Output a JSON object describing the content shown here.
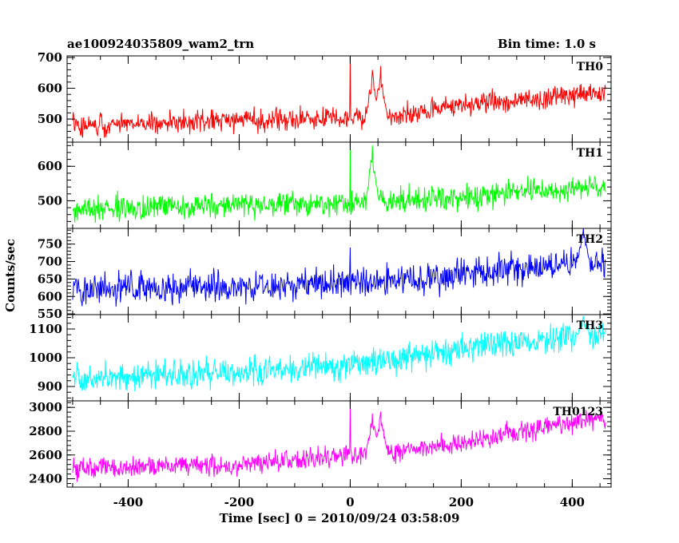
{
  "header": {
    "title": "ae100924035809_wam2_trn",
    "bin_time": "Bin time: 1.0 s"
  },
  "chart_data": {
    "type": "line",
    "xlabel": "Time [sec] 0 = 2010/09/24 03:58:09",
    "ylabel": "Counts/sec",
    "xlim": [
      -510,
      470
    ],
    "x_ticks": [
      "-400",
      "-200",
      "0",
      "200",
      "400"
    ],
    "x_tick_values": [
      -400,
      -200,
      0,
      200,
      400
    ],
    "x_range": [
      -500,
      460
    ],
    "grid": false,
    "panels": [
      {
        "name": "TH0",
        "color": "#ff0000",
        "ylim": [
          425,
          705
        ],
        "y_ticks": [
          "500",
          "600",
          "700"
        ],
        "y_tick_values": [
          500,
          600,
          700
        ],
        "baseline": [
          [
            -500,
            480
          ],
          [
            -200,
            495
          ],
          [
            0,
            505
          ],
          [
            100,
            515
          ],
          [
            200,
            545
          ],
          [
            300,
            560
          ],
          [
            460,
            585
          ]
        ],
        "noise_amplitude": 38,
        "spikes": [
          [
            0,
            700
          ],
          [
            40,
            660
          ],
          [
            55,
            672
          ]
        ]
      },
      {
        "name": "TH1",
        "color": "#00ff00",
        "ylim": [
          420,
          670
        ],
        "y_ticks": [
          "500",
          "600"
        ],
        "y_tick_values": [
          500,
          600
        ],
        "baseline": [
          [
            -500,
            475
          ],
          [
            -200,
            485
          ],
          [
            0,
            495
          ],
          [
            100,
            500
          ],
          [
            200,
            510
          ],
          [
            300,
            525
          ],
          [
            460,
            540
          ]
        ],
        "noise_amplitude": 40,
        "spikes": [
          [
            0,
            665
          ],
          [
            40,
            660
          ]
        ]
      },
      {
        "name": "TH2",
        "color": "#0000ff",
        "ylim": [
          548,
          795
        ],
        "y_ticks": [
          "550",
          "600",
          "650",
          "700",
          "750"
        ],
        "y_tick_values": [
          550,
          600,
          650,
          700,
          750
        ],
        "baseline": [
          [
            -500,
            620
          ],
          [
            -200,
            628
          ],
          [
            0,
            640
          ],
          [
            100,
            650
          ],
          [
            200,
            665
          ],
          [
            300,
            685
          ],
          [
            460,
            700
          ]
        ],
        "noise_amplitude": 48,
        "spikes": [
          [
            0,
            740
          ],
          [
            420,
            795
          ]
        ]
      },
      {
        "name": "TH3",
        "color": "#00ffff",
        "ylim": [
          850,
          1150
        ],
        "y_ticks": [
          "900",
          "1000",
          "1100"
        ],
        "y_tick_values": [
          900,
          1000,
          1100
        ],
        "baseline": [
          [
            -500,
            930
          ],
          [
            -200,
            950
          ],
          [
            0,
            975
          ],
          [
            100,
            1000
          ],
          [
            200,
            1030
          ],
          [
            300,
            1055
          ],
          [
            460,
            1080
          ]
        ],
        "noise_amplitude": 55,
        "spikes": [
          [
            420,
            1145
          ]
        ]
      },
      {
        "name": "TH0123",
        "color": "#ff00ff",
        "ylim": [
          2330,
          3055
        ],
        "y_ticks": [
          "2400",
          "2600",
          "2800",
          "3000"
        ],
        "y_tick_values": [
          2400,
          2600,
          2800,
          3000
        ],
        "baseline": [
          [
            -500,
            2490
          ],
          [
            -200,
            2520
          ],
          [
            0,
            2600
          ],
          [
            100,
            2640
          ],
          [
            200,
            2700
          ],
          [
            300,
            2790
          ],
          [
            460,
            2920
          ]
        ],
        "noise_amplitude": 95,
        "spikes": [
          [
            0,
            3040
          ],
          [
            40,
            2950
          ],
          [
            55,
            2965
          ]
        ]
      }
    ]
  }
}
